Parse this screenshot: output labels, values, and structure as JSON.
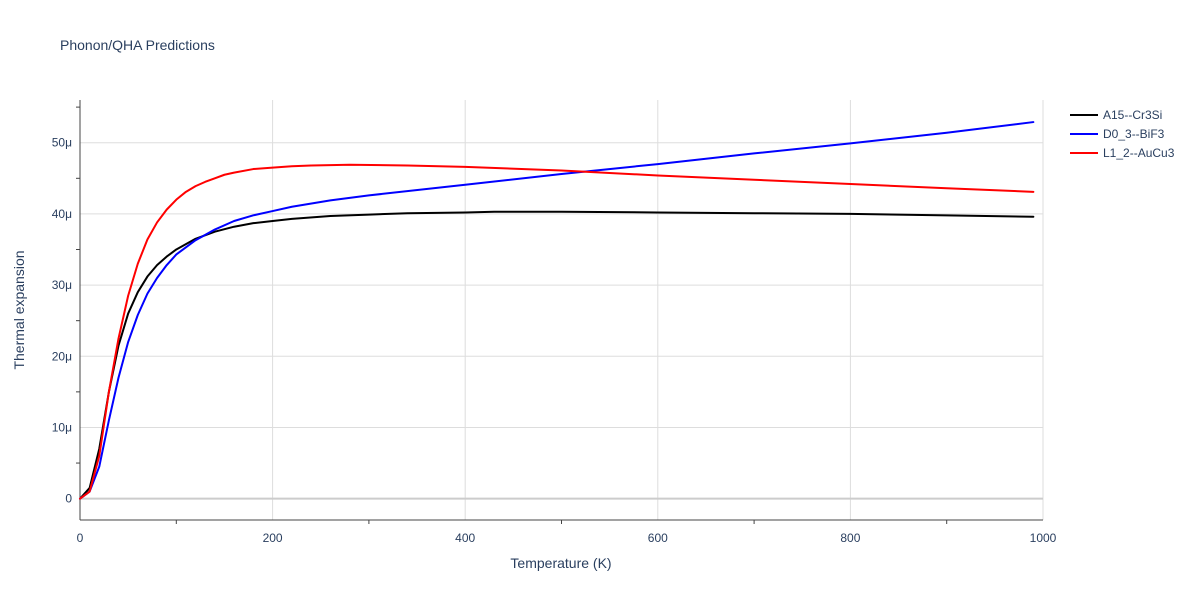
{
  "chart_data": {
    "type": "line",
    "title": "Phonon/QHA Predictions",
    "xlabel": "Temperature (K)",
    "ylabel": "Thermal expansion",
    "xlim": [
      0,
      1000
    ],
    "ylim": [
      -3,
      56
    ],
    "x_ticks": [
      {
        "value": 0,
        "label": "0"
      },
      {
        "value": 200,
        "label": "200"
      },
      {
        "value": 400,
        "label": "400"
      },
      {
        "value": 600,
        "label": "600"
      },
      {
        "value": 800,
        "label": "800"
      },
      {
        "value": 1000,
        "label": "1000"
      }
    ],
    "y_ticks": [
      {
        "value": 0,
        "label": "0"
      },
      {
        "value": 10,
        "label": "10μ"
      },
      {
        "value": 20,
        "label": "20μ"
      },
      {
        "value": 30,
        "label": "30μ"
      },
      {
        "value": 40,
        "label": "40μ"
      },
      {
        "value": 50,
        "label": "50μ"
      }
    ],
    "grid": true,
    "legend_position": "top-right",
    "series": [
      {
        "name": "A15--Cr3Si",
        "color": "#000000",
        "x": [
          0,
          10,
          20,
          30,
          40,
          50,
          60,
          70,
          80,
          90,
          100,
          120,
          140,
          160,
          180,
          200,
          220,
          260,
          300,
          340,
          400,
          430,
          500,
          600,
          700,
          800,
          900,
          990
        ],
        "y": [
          0,
          1.5,
          7.0,
          15.0,
          21.5,
          26.0,
          29.0,
          31.2,
          32.8,
          34.0,
          35.0,
          36.5,
          37.5,
          38.2,
          38.7,
          39.0,
          39.3,
          39.7,
          39.9,
          40.1,
          40.2,
          40.3,
          40.3,
          40.2,
          40.1,
          40.0,
          39.8,
          39.6
        ]
      },
      {
        "name": "D0_3--BiF3",
        "color": "#0000ff",
        "x": [
          0,
          10,
          20,
          30,
          40,
          50,
          60,
          70,
          80,
          90,
          100,
          120,
          140,
          160,
          180,
          200,
          220,
          260,
          300,
          400,
          500,
          600,
          700,
          800,
          900,
          990
        ],
        "y": [
          0,
          1.0,
          4.5,
          11.0,
          17.0,
          22.0,
          25.8,
          28.8,
          31.0,
          32.8,
          34.3,
          36.3,
          37.8,
          39.0,
          39.8,
          40.4,
          41.0,
          41.9,
          42.6,
          44.1,
          45.6,
          47.0,
          48.5,
          49.9,
          51.4,
          52.9
        ]
      },
      {
        "name": "L1_2--AuCu3",
        "color": "#ff0000",
        "x": [
          0,
          10,
          20,
          30,
          40,
          50,
          60,
          70,
          80,
          90,
          100,
          110,
          120,
          130,
          140,
          150,
          160,
          180,
          200,
          220,
          240,
          280,
          340,
          400,
          500,
          600,
          700,
          800,
          900,
          990
        ],
        "y": [
          0,
          1.0,
          6.0,
          15.0,
          22.5,
          28.5,
          33.0,
          36.4,
          38.8,
          40.6,
          42.0,
          43.1,
          43.9,
          44.5,
          45.0,
          45.5,
          45.8,
          46.3,
          46.5,
          46.7,
          46.8,
          46.9,
          46.8,
          46.6,
          46.1,
          45.4,
          44.8,
          44.2,
          43.6,
          43.1
        ]
      }
    ]
  }
}
